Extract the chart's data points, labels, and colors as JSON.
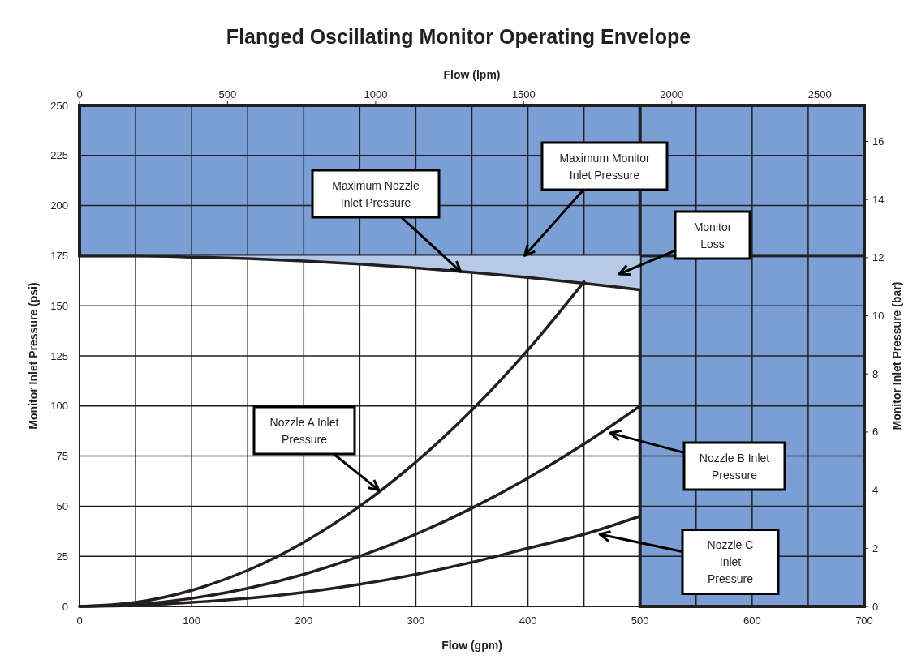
{
  "chart_data": {
    "type": "line",
    "title": "Flanged Oscillating Monitor Operating Envelope",
    "xlabel": "Flow (gpm)",
    "x2label": "Flow (lpm)",
    "ylabel": "Monitor Inlet Pressure (psi)",
    "y2label": "Monitor Inlet Pressure (bar)",
    "xlim": [
      0,
      700
    ],
    "xticks": [
      0,
      {
        "value": 50,
        "label": null
      },
      100,
      {
        "value": 150,
        "label": null
      },
      200,
      {
        "value": 250,
        "label": null
      },
      300,
      {
        "value": 350,
        "label": null
      },
      400,
      {
        "value": 450,
        "label": null
      },
      500,
      {
        "value": 550,
        "label": null
      },
      600,
      {
        "value": 650,
        "label": null
      },
      700
    ],
    "x2lim": [
      0,
      2650
    ],
    "x2ticks": [
      0,
      500,
      1000,
      1500,
      2000,
      2500
    ],
    "ylim": [
      0,
      250
    ],
    "yticks": [
      0,
      25,
      50,
      75,
      100,
      125,
      150,
      175,
      200,
      225,
      250
    ],
    "y2lim": [
      0,
      17.24
    ],
    "y2ticks": [
      0,
      2,
      4,
      6,
      8,
      10,
      12,
      14,
      16
    ],
    "grid": true,
    "marker": "none",
    "line_style": "solid",
    "bands": [
      {
        "axis": "y",
        "from": 175,
        "to": 250,
        "color": "#7b9fd4"
      },
      {
        "axis": "x",
        "from": 500,
        "to": 700,
        "color": "#7b9fd4"
      }
    ],
    "series": [
      {
        "color": "#231f20",
        "x": [
          0,
          50,
          100,
          150,
          200,
          250,
          300,
          350,
          400,
          450,
          500
        ],
        "values": [
          175,
          175,
          174.3,
          173.5,
          172.3,
          170.8,
          168.9,
          166.7,
          164.1,
          161.2,
          158
        ]
      },
      {
        "color": "#231f20",
        "x": [
          0,
          50,
          100,
          150,
          200,
          250,
          300,
          350,
          400,
          450
        ],
        "values": [
          0,
          2,
          8,
          18,
          32,
          50,
          72,
          98,
          128,
          162
        ]
      },
      {
        "color": "#231f20",
        "x": [
          0,
          50,
          100,
          150,
          200,
          250,
          300,
          350,
          400,
          450,
          500
        ],
        "values": [
          0,
          1,
          4,
          9,
          16,
          25,
          36,
          49,
          64,
          81,
          100
        ]
      },
      {
        "color": "#231f20",
        "x": [
          0,
          50,
          100,
          150,
          200,
          250,
          300,
          350,
          400,
          450,
          500
        ],
        "values": [
          0,
          0.5,
          2,
          4,
          7,
          11,
          16,
          22,
          29,
          36,
          45
        ]
      }
    ],
    "annotations": [
      {
        "text": "Maximum Nozzle Inlet Pressure",
        "x": 340,
        "y": 167
      },
      {
        "text": "Maximum Monitor Inlet Pressure",
        "x": 397,
        "y": 175
      },
      "Monitor Loss",
      {
        "text": "Nozzle A Inlet Pressure",
        "x": 267,
        "y": 58
      },
      "Nozzle B Inlet Pressure",
      "Nozzle C Inlet Pressure"
    ]
  }
}
